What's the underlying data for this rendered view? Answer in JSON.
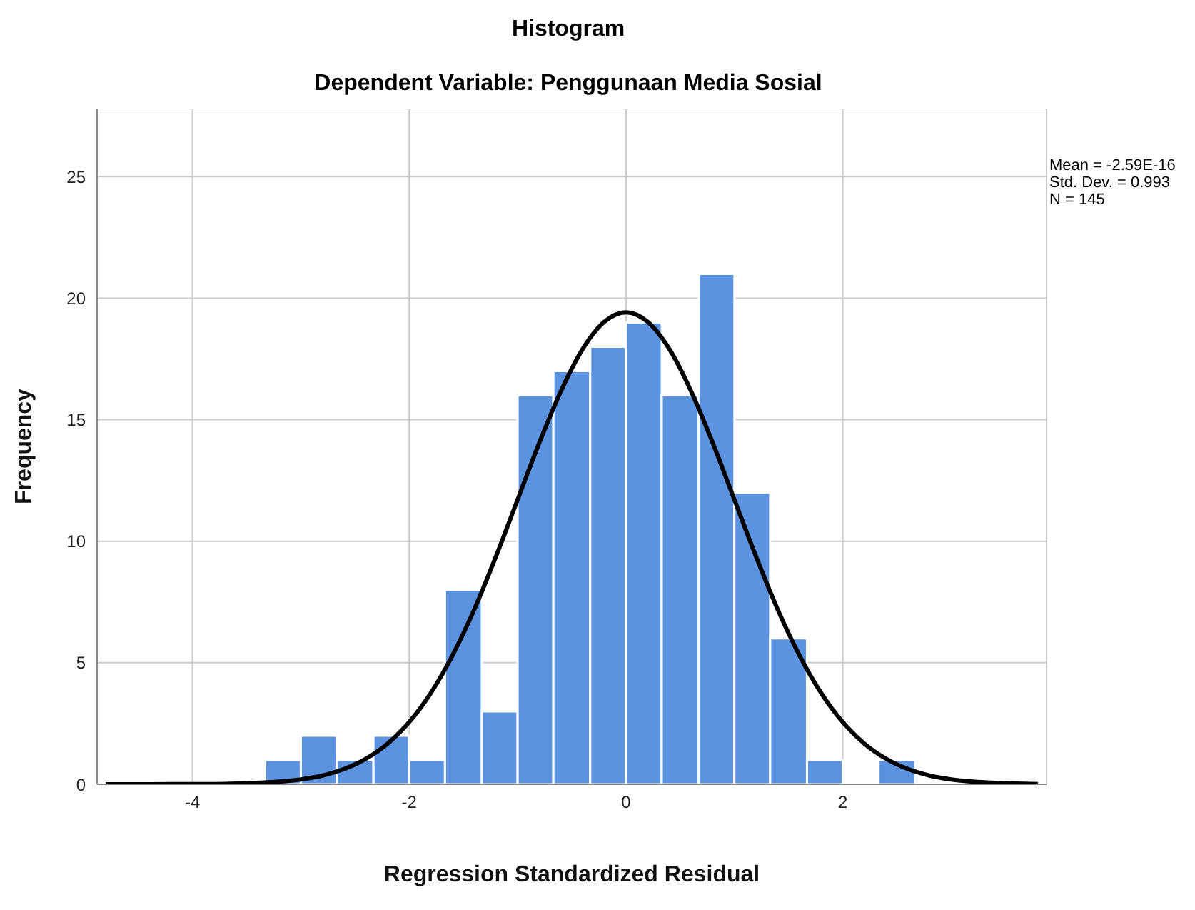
{
  "chart_data": {
    "type": "histogram",
    "title": "Histogram",
    "subtitle": "Dependent Variable: Penggunaan Media Sosial",
    "xlabel": "Regression Standardized Residual",
    "ylabel": "Frequency",
    "bins": [
      -3.33,
      -3,
      -2.67,
      -2.33,
      -2,
      -1.67,
      -1.33,
      -1,
      -0.67,
      -0.33,
      0,
      0.33,
      0.67,
      1,
      1.33,
      1.67,
      2,
      2.33,
      2.67
    ],
    "values": [
      1,
      2,
      1,
      2,
      1,
      8,
      3,
      16,
      17,
      18,
      19,
      16,
      21,
      12,
      6,
      1,
      0,
      1
    ],
    "color": "#5b93e0",
    "series": [
      {
        "type": "line",
        "color": "#000000",
        "x": [
          -4.8,
          -4.4,
          -4,
          -3.8,
          -3.6,
          -3.4,
          -3.2,
          -3,
          -2.8,
          -2.6,
          -2.4,
          -2.2,
          -2,
          -1.8,
          -1.6,
          -1.4,
          -1.2,
          -1,
          -0.8,
          -0.6,
          -0.4,
          -0.2,
          0,
          0.2,
          0.4,
          0.6,
          0.8,
          1,
          1.2,
          1.4,
          1.6,
          1.8,
          2,
          2.2,
          2.4,
          2.6,
          2.8,
          3,
          3.2,
          3.4,
          3.6,
          3.8
        ],
        "values": [
          0,
          0,
          0.01,
          0.01,
          0.03,
          0.06,
          0.11,
          0.2,
          0.36,
          0.63,
          1.05,
          1.67,
          2.56,
          3.76,
          5.31,
          7.19,
          9.37,
          11.71,
          14.05,
          16.18,
          17.91,
          19.03,
          19.42,
          19.03,
          17.91,
          16.18,
          14.05,
          11.71,
          9.37,
          7.19,
          5.31,
          3.76,
          2.56,
          1.67,
          1.05,
          0.63,
          0.36,
          0.2,
          0.11,
          0.06,
          0.03,
          0.01
        ]
      }
    ],
    "xlim": [
      -4.88,
      3.88
    ],
    "xticks": [
      -4,
      -2,
      0,
      2
    ],
    "ylim": [
      0,
      27.8
    ],
    "yticks": [
      0,
      5,
      10,
      15,
      20,
      25
    ],
    "grid": true,
    "marker": "none",
    "line_style": "solid",
    "annotations": [
      "Mean = -2.59E-16",
      "Std. Dev. = 0.993",
      "N = 145"
    ]
  }
}
